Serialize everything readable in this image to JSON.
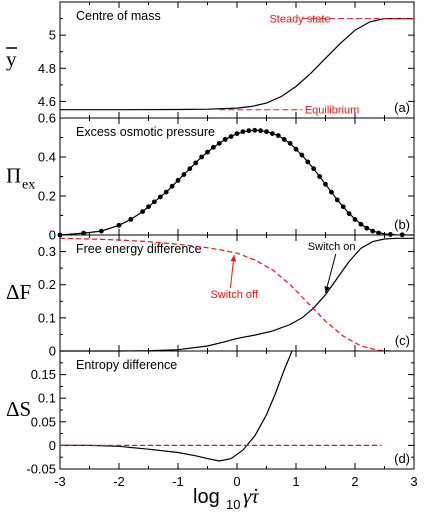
{
  "chart_data": [
    {
      "type": "line",
      "panel_tag": "(a)",
      "title": "Centre of mass",
      "ylabel": "y",
      "ylabel_overline": true,
      "ylabel_sub": "",
      "xlim": [
        -3,
        3
      ],
      "ylim": [
        4.5,
        5.2
      ],
      "yticks": [
        4.6,
        4.8,
        5
      ],
      "ytick_labels": [
        "4.6",
        "4.8",
        "5"
      ],
      "series": [
        {
          "name": "",
          "color": "#000000",
          "dash": "solid",
          "x": [
            -3,
            -2,
            -1,
            -0.5,
            0,
            0.25,
            0.5,
            0.75,
            1,
            1.25,
            1.5,
            1.75,
            2,
            2.25,
            2.5,
            2.75,
            3
          ],
          "y": [
            4.55,
            4.55,
            4.551,
            4.553,
            4.56,
            4.57,
            4.59,
            4.63,
            4.69,
            4.77,
            4.86,
            4.95,
            5.03,
            5.08,
            5.1,
            5.1,
            5.1
          ]
        }
      ],
      "annotations": [
        {
          "text": "Steady state",
          "color": "#e8141b",
          "line_x": [
            1.1,
            3
          ],
          "line_y": 5.1,
          "text_x": 0.55,
          "text_y": 5.1,
          "style": "dashed"
        },
        {
          "text": "Equilibrium",
          "color": "#e8141b",
          "line_x": [
            -0.3,
            1.1
          ],
          "line_y": 4.55,
          "text_x": 1.15,
          "text_y": 4.55,
          "style": "dashed"
        }
      ]
    },
    {
      "type": "line",
      "panel_tag": "(b)",
      "title": "Excess osmotic pressure",
      "ylabel": "Π",
      "ylabel_overline": false,
      "ylabel_sub": "ex",
      "xlim": [
        -3,
        3
      ],
      "ylim": [
        0,
        0.6
      ],
      "yticks": [
        0,
        0.2,
        0.4,
        0.6
      ],
      "ytick_labels": [
        "0",
        "0.2",
        "0.4",
        "0.6"
      ],
      "series": [
        {
          "name": "",
          "color": "#000000",
          "dash": "solid",
          "x": [
            -3,
            -2.6,
            -2.3,
            -2.0,
            -1.8,
            -1.6,
            -1.4,
            -1.2,
            -1.0,
            -0.8,
            -0.6,
            -0.4,
            -0.2,
            0.0,
            0.2,
            0.35,
            0.5,
            0.7,
            0.9,
            1.1,
            1.3,
            1.5,
            1.7,
            1.9,
            2.1,
            2.3,
            2.5,
            2.7,
            3.0
          ],
          "y": [
            0.0,
            0.01,
            0.02,
            0.05,
            0.08,
            0.12,
            0.17,
            0.22,
            0.28,
            0.34,
            0.4,
            0.45,
            0.49,
            0.52,
            0.535,
            0.537,
            0.53,
            0.51,
            0.47,
            0.41,
            0.34,
            0.26,
            0.18,
            0.11,
            0.055,
            0.02,
            0.005,
            0.001,
            0.0
          ]
        }
      ],
      "markers": {
        "color": "#000000",
        "x": [
          -3,
          -2.6,
          -2.3,
          -2.0,
          -1.8,
          -1.6,
          -1.5,
          -1.4,
          -1.3,
          -1.2,
          -1.1,
          -1.0,
          -0.9,
          -0.8,
          -0.7,
          -0.6,
          -0.5,
          -0.4,
          -0.3,
          -0.2,
          -0.1,
          0.0,
          0.1,
          0.2,
          0.3,
          0.4,
          0.5,
          0.6,
          0.7,
          0.8,
          0.9,
          1.0,
          1.1,
          1.2,
          1.3,
          1.4,
          1.5,
          1.6,
          1.7,
          1.8,
          1.9,
          2.0,
          2.1,
          2.2,
          2.3,
          2.4,
          2.6,
          2.8
        ],
        "y": [
          0.0,
          0.01,
          0.02,
          0.05,
          0.08,
          0.12,
          0.145,
          0.17,
          0.195,
          0.22,
          0.25,
          0.28,
          0.31,
          0.34,
          0.37,
          0.4,
          0.425,
          0.45,
          0.47,
          0.49,
          0.505,
          0.52,
          0.53,
          0.535,
          0.537,
          0.535,
          0.53,
          0.52,
          0.51,
          0.49,
          0.47,
          0.44,
          0.41,
          0.375,
          0.34,
          0.3,
          0.26,
          0.22,
          0.18,
          0.145,
          0.11,
          0.08,
          0.055,
          0.035,
          0.02,
          0.01,
          0.003,
          0.001
        ]
      },
      "annotations": []
    },
    {
      "type": "line",
      "panel_tag": "(c)",
      "title": "Free energy difference",
      "ylabel": "ΔF",
      "ylabel_overline": false,
      "ylabel_sub": "",
      "xlim": [
        -3,
        3
      ],
      "ylim": [
        0,
        0.35
      ],
      "yticks": [
        0,
        0.1,
        0.2,
        0.3
      ],
      "ytick_labels": [
        "0",
        "0.1",
        "0.2",
        "0.3"
      ],
      "series": [
        {
          "name": "Switch on",
          "color": "#000000",
          "dash": "solid",
          "x": [
            -3,
            -2,
            -1.5,
            -1,
            -0.5,
            -0.2,
            0,
            0.3,
            0.6,
            0.9,
            1.1,
            1.3,
            1.5,
            1.7,
            1.9,
            2.1,
            2.3,
            2.5,
            2.7,
            3
          ],
          "y": [
            0,
            0,
            0.001,
            0.004,
            0.015,
            0.028,
            0.038,
            0.048,
            0.06,
            0.08,
            0.1,
            0.13,
            0.17,
            0.22,
            0.27,
            0.31,
            0.33,
            0.338,
            0.34,
            0.34
          ]
        },
        {
          "name": "Switch off",
          "color": "#e8141b",
          "dash": "dashed",
          "x": [
            -3,
            -2.5,
            -2,
            -1.5,
            -1,
            -0.6,
            -0.3,
            0,
            0.3,
            0.6,
            0.9,
            1.2,
            1.5,
            1.8,
            2.1,
            2.4,
            2.6
          ],
          "y": [
            0.34,
            0.338,
            0.335,
            0.33,
            0.322,
            0.314,
            0.306,
            0.295,
            0.275,
            0.245,
            0.2,
            0.145,
            0.09,
            0.045,
            0.015,
            0.002,
            0
          ]
        }
      ],
      "annotations": [
        {
          "text": "Switch on",
          "color": "#000000",
          "text_x": 1.2,
          "text_y": 0.305,
          "arrow_to_x": 1.5,
          "arrow_to_y": 0.175
        },
        {
          "text": "Switch off",
          "color": "#e8141b",
          "text_x": -0.45,
          "text_y": 0.16,
          "arrow_to_x": -0.05,
          "arrow_to_y": 0.29
        }
      ]
    },
    {
      "type": "line",
      "panel_tag": "(d)",
      "title": "Entropy difference",
      "ylabel": "ΔS",
      "ylabel_overline": false,
      "ylabel_sub": "",
      "xlim": [
        -3,
        3
      ],
      "ylim": [
        -0.05,
        0.2
      ],
      "yticks": [
        -0.05,
        0,
        0.05,
        0.1,
        0.15
      ],
      "ytick_labels": [
        "-0.05",
        "0",
        "0.05",
        "0.1",
        "0.15"
      ],
      "xticks": [
        -3,
        -2,
        -1,
        0,
        1,
        2,
        3
      ],
      "xtick_labels": [
        "-3",
        "-2",
        "-1",
        "0",
        "1",
        "2",
        "3"
      ],
      "series": [
        {
          "name": "",
          "color": "#000000",
          "dash": "solid",
          "x": [
            -3,
            -2.5,
            -2,
            -1.5,
            -1,
            -0.7,
            -0.5,
            -0.3,
            -0.1,
            0.1,
            0.3,
            0.5,
            0.65,
            0.8,
            0.9,
            0.93
          ],
          "y": [
            0,
            0,
            -0.002,
            -0.008,
            -0.015,
            -0.022,
            -0.028,
            -0.033,
            -0.028,
            -0.01,
            0.02,
            0.065,
            0.11,
            0.16,
            0.19,
            0.2
          ]
        },
        {
          "name": "",
          "color": "#e8141b",
          "dash": "dashed",
          "x": [
            -3,
            2.45
          ],
          "y": [
            0,
            0
          ]
        }
      ],
      "annotations": []
    }
  ],
  "xlabel": {
    "prefix": "log",
    "sub": "10",
    "symbol": "γ̇τ"
  }
}
